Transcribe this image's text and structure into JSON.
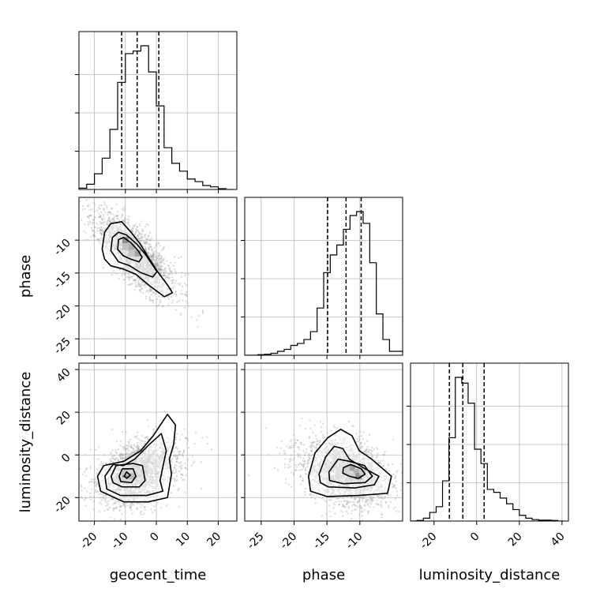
{
  "chart_data": {
    "type": "corner",
    "parameters": [
      "geocent_time",
      "phase",
      "luminosity_distance"
    ],
    "axis_labels": {
      "x": [
        "geocent_time",
        "phase",
        "luminosity_distance"
      ],
      "y": [
        "phase",
        "luminosity_distance"
      ]
    },
    "ranges": [
      [
        -25,
        26
      ],
      [
        -27.5,
        -3.5
      ],
      [
        -31,
        43
      ]
    ],
    "ticks": [
      [
        -20,
        -10,
        0,
        10,
        20
      ],
      [
        -25,
        -20,
        -15,
        -10
      ],
      [
        -20,
        0,
        20,
        40
      ]
    ],
    "grid": true,
    "legend": "none",
    "colors": {
      "line": "#000000",
      "points": "#9a9a9a",
      "grid": "#b8b8b8"
    },
    "histograms": [
      {
        "param": "geocent_time",
        "bin_edges": [
          -25,
          -22.5,
          -20,
          -17.5,
          -15,
          -12.5,
          -10,
          -7.5,
          -5,
          -2.5,
          0,
          2.5,
          5,
          7.5,
          10,
          12.5,
          15,
          17.5,
          20,
          22.5,
          25
        ],
        "counts": [
          0.5,
          2,
          6,
          12,
          23,
          41,
          52,
          53,
          55,
          45,
          32,
          16,
          10,
          7,
          4,
          3,
          1.5,
          1,
          0.3,
          0
        ],
        "quantile_lines": [
          -11.2,
          -6.2,
          0.8
        ]
      },
      {
        "param": "phase",
        "bin_edges": [
          -27.5,
          -26.5,
          -25.5,
          -24.5,
          -23.5,
          -22.5,
          -21.5,
          -20.5,
          -19.5,
          -18.5,
          -17.5,
          -16.5,
          -15.5,
          -14.5,
          -13.5,
          -12.5,
          -11.5,
          -10.5,
          -9.5,
          -8.5,
          -7.5,
          -6.5,
          -5.5,
          -4.5,
          -3.5
        ],
        "counts": [
          0,
          0,
          0.3,
          0.5,
          1,
          2,
          3,
          5,
          6,
          8,
          12,
          24,
          42,
          51,
          56,
          64,
          71,
          73,
          67,
          47,
          21,
          8,
          2,
          2
        ],
        "quantile_lines": [
          -14.9,
          -12.1,
          -9.8
        ]
      },
      {
        "param": "luminosity_distance",
        "bin_edges": [
          -31,
          -28,
          -25,
          -22,
          -19,
          -16,
          -13,
          -10,
          -7,
          -4,
          -1,
          2,
          5,
          8,
          11,
          14,
          17,
          20,
          23,
          26,
          29,
          32,
          35,
          38,
          41
        ],
        "counts": [
          0,
          0.2,
          1,
          3,
          5,
          14,
          29,
          50,
          48,
          41,
          25,
          20,
          11,
          10,
          8,
          6,
          4,
          2,
          1,
          0.5,
          0.3,
          0.3,
          0.2,
          0
        ],
        "quantile_lines": [
          -12.8,
          -6.5,
          3.5
        ]
      }
    ],
    "scatter": [
      {
        "x_param": "geocent_time",
        "y_param": "phase",
        "mean": [
          -7,
          -12.2
        ],
        "sd": [
          5.2,
          2.8
        ],
        "corr": -0.72,
        "n": 2400,
        "contours": [
          [
            [
              -17.5,
              -11.4
            ],
            [
              -16.7,
              -8.8
            ],
            [
              -14.7,
              -7.5
            ],
            [
              -11.2,
              -7.2
            ],
            [
              -8.2,
              -8.8
            ],
            [
              -5.2,
              -10.6
            ],
            [
              -2.6,
              -12.6
            ],
            [
              0.4,
              -14.8
            ],
            [
              3.6,
              -16.8
            ],
            [
              5.2,
              -18
            ],
            [
              2.6,
              -18.6
            ],
            [
              -2.3,
              -16.9
            ],
            [
              -6.6,
              -15.2
            ],
            [
              -10.6,
              -14.4
            ],
            [
              -14.7,
              -13.9
            ],
            [
              -16.7,
              -12.9
            ]
          ],
          [
            [
              -14.7,
              -11.6
            ],
            [
              -14.2,
              -9.6
            ],
            [
              -12.2,
              -8.8
            ],
            [
              -9.7,
              -9.2
            ],
            [
              -6.3,
              -10.6
            ],
            [
              -3.5,
              -12.2
            ],
            [
              -1.2,
              -13.8
            ],
            [
              0.2,
              -14.8
            ],
            [
              -1.2,
              -15.6
            ],
            [
              -5.2,
              -14.9
            ],
            [
              -8.6,
              -13.9
            ],
            [
              -12.2,
              -13.3
            ]
          ],
          [
            [
              -12.5,
              -11.4
            ],
            [
              -12.2,
              -9.9
            ],
            [
              -10.6,
              -9.6
            ],
            [
              -8.2,
              -10.4
            ],
            [
              -5.9,
              -11.6
            ],
            [
              -4.6,
              -12.6
            ],
            [
              -5.6,
              -13.3
            ],
            [
              -8.2,
              -12.9
            ],
            [
              -10.6,
              -12.4
            ]
          ]
        ],
        "density_cells": [
          {
            "x": -10,
            "y": -10,
            "v": 0.95
          },
          {
            "x": -8,
            "y": -11,
            "v": 0.7
          },
          {
            "x": -6,
            "y": -12,
            "v": 0.8
          },
          {
            "x": -10,
            "y": -11,
            "v": 0.55
          },
          {
            "x": -8,
            "y": -12,
            "v": 0.5
          },
          {
            "x": -6,
            "y": -13,
            "v": 0.3
          },
          {
            "x": -12,
            "y": -10,
            "v": 0.25
          },
          {
            "x": -4,
            "y": -13,
            "v": 0.25
          },
          {
            "x": -8,
            "y": -10,
            "v": 0.35
          }
        ]
      },
      {
        "x_param": "geocent_time",
        "y_param": "luminosity_distance",
        "mean": [
          -6,
          -8
        ],
        "sd": [
          5.5,
          7.5
        ],
        "corr": 0.35,
        "n": 2400,
        "contours": [
          [
            [
              -19,
              -10
            ],
            [
              -17,
              -5
            ],
            [
              -10.5,
              -3
            ],
            [
              -5,
              2
            ],
            [
              -1,
              9
            ],
            [
              3.6,
              19
            ],
            [
              6.2,
              14
            ],
            [
              5.6,
              5
            ],
            [
              4.2,
              -2
            ],
            [
              4.9,
              -9
            ],
            [
              3.6,
              -20
            ],
            [
              -2.6,
              -22
            ],
            [
              -10.5,
              -22
            ],
            [
              -18,
              -17
            ]
          ],
          [
            [
              -16.6,
              -10
            ],
            [
              -14,
              -4.5
            ],
            [
              -10.6,
              -5
            ],
            [
              -7,
              -2
            ],
            [
              -2.2,
              5
            ],
            [
              1.6,
              10
            ],
            [
              3.2,
              2
            ],
            [
              1.2,
              -12
            ],
            [
              2.1,
              -17
            ],
            [
              -3,
              -19
            ],
            [
              -11.6,
              -19
            ],
            [
              -16,
              -16
            ]
          ],
          [
            [
              -14.6,
              -10
            ],
            [
              -13,
              -5
            ],
            [
              -7.5,
              -4
            ],
            [
              -4.5,
              -5
            ],
            [
              -3.6,
              -12
            ],
            [
              -5.5,
              -15
            ],
            [
              -11,
              -15
            ],
            [
              -14,
              -13
            ]
          ],
          [
            [
              -12,
              -10
            ],
            [
              -11,
              -6.5
            ],
            [
              -7.5,
              -6.5
            ],
            [
              -6.6,
              -10
            ],
            [
              -8,
              -13
            ],
            [
              -11.5,
              -12.5
            ]
          ],
          [
            [
              -10.4,
              -10
            ],
            [
              -9.6,
              -8
            ],
            [
              -8.4,
              -9.5
            ],
            [
              -9.5,
              -11
            ]
          ]
        ],
        "density_cells": [
          {
            "x": -10,
            "y": -10,
            "v": 0.95
          },
          {
            "x": -8,
            "y": -10,
            "v": 0.6
          },
          {
            "x": -10,
            "y": -8,
            "v": 0.5
          },
          {
            "x": -12,
            "y": -10,
            "v": 0.35
          },
          {
            "x": -8,
            "y": -7,
            "v": 0.3
          },
          {
            "x": -10,
            "y": -12,
            "v": 0.35
          }
        ]
      },
      {
        "x_param": "phase",
        "y_param": "luminosity_distance",
        "mean": [
          -12.2,
          -8
        ],
        "sd": [
          2.8,
          7.5
        ],
        "corr": -0.25,
        "n": 2400,
        "contours": [
          [
            [
              -17.8,
              -10
            ],
            [
              -16.8,
              1
            ],
            [
              -14.9,
              8
            ],
            [
              -12.9,
              12
            ],
            [
              -11.2,
              9
            ],
            [
              -10.1,
              2
            ],
            [
              -8.2,
              -2
            ],
            [
              -5.2,
              -10
            ],
            [
              -5.8,
              -18
            ],
            [
              -10.2,
              -19
            ],
            [
              -15,
              -19.5
            ],
            [
              -17.5,
              -17
            ]
          ],
          [
            [
              -16.2,
              -9
            ],
            [
              -15.2,
              -1
            ],
            [
              -13.9,
              4
            ],
            [
              -12.6,
              3
            ],
            [
              -11.6,
              -2
            ],
            [
              -9.5,
              -6
            ],
            [
              -7.1,
              -10
            ],
            [
              -7.8,
              -14
            ],
            [
              -10.8,
              -15.5
            ],
            [
              -14.8,
              -15
            ],
            [
              -16,
              -13
            ]
          ],
          [
            [
              -14.7,
              -8
            ],
            [
              -13.3,
              -2
            ],
            [
              -11.6,
              -3
            ],
            [
              -9.3,
              -5
            ],
            [
              -8.1,
              -10
            ],
            [
              -9.2,
              -13
            ],
            [
              -12.5,
              -13.5
            ],
            [
              -14.6,
              -12
            ]
          ],
          [
            [
              -12.5,
              -6
            ],
            [
              -11.4,
              -4.5
            ],
            [
              -9.8,
              -6.5
            ],
            [
              -9.2,
              -9
            ],
            [
              -10.2,
              -11
            ],
            [
              -11.6,
              -10
            ],
            [
              -12.6,
              -8.5
            ]
          ]
        ],
        "density_cells": [
          {
            "x": -11.2,
            "y": -6,
            "v": 0.85
          },
          {
            "x": -10.5,
            "y": -8,
            "v": 0.65
          },
          {
            "x": -10.2,
            "y": -10,
            "v": 0.95
          },
          {
            "x": -12,
            "y": -6,
            "v": 0.45
          },
          {
            "x": -12,
            "y": -8,
            "v": 0.4
          },
          {
            "x": -9.6,
            "y": -8,
            "v": 0.45
          },
          {
            "x": -12.8,
            "y": -6,
            "v": 0.25
          },
          {
            "x": -11.2,
            "y": -10,
            "v": 0.4
          }
        ]
      }
    ]
  }
}
